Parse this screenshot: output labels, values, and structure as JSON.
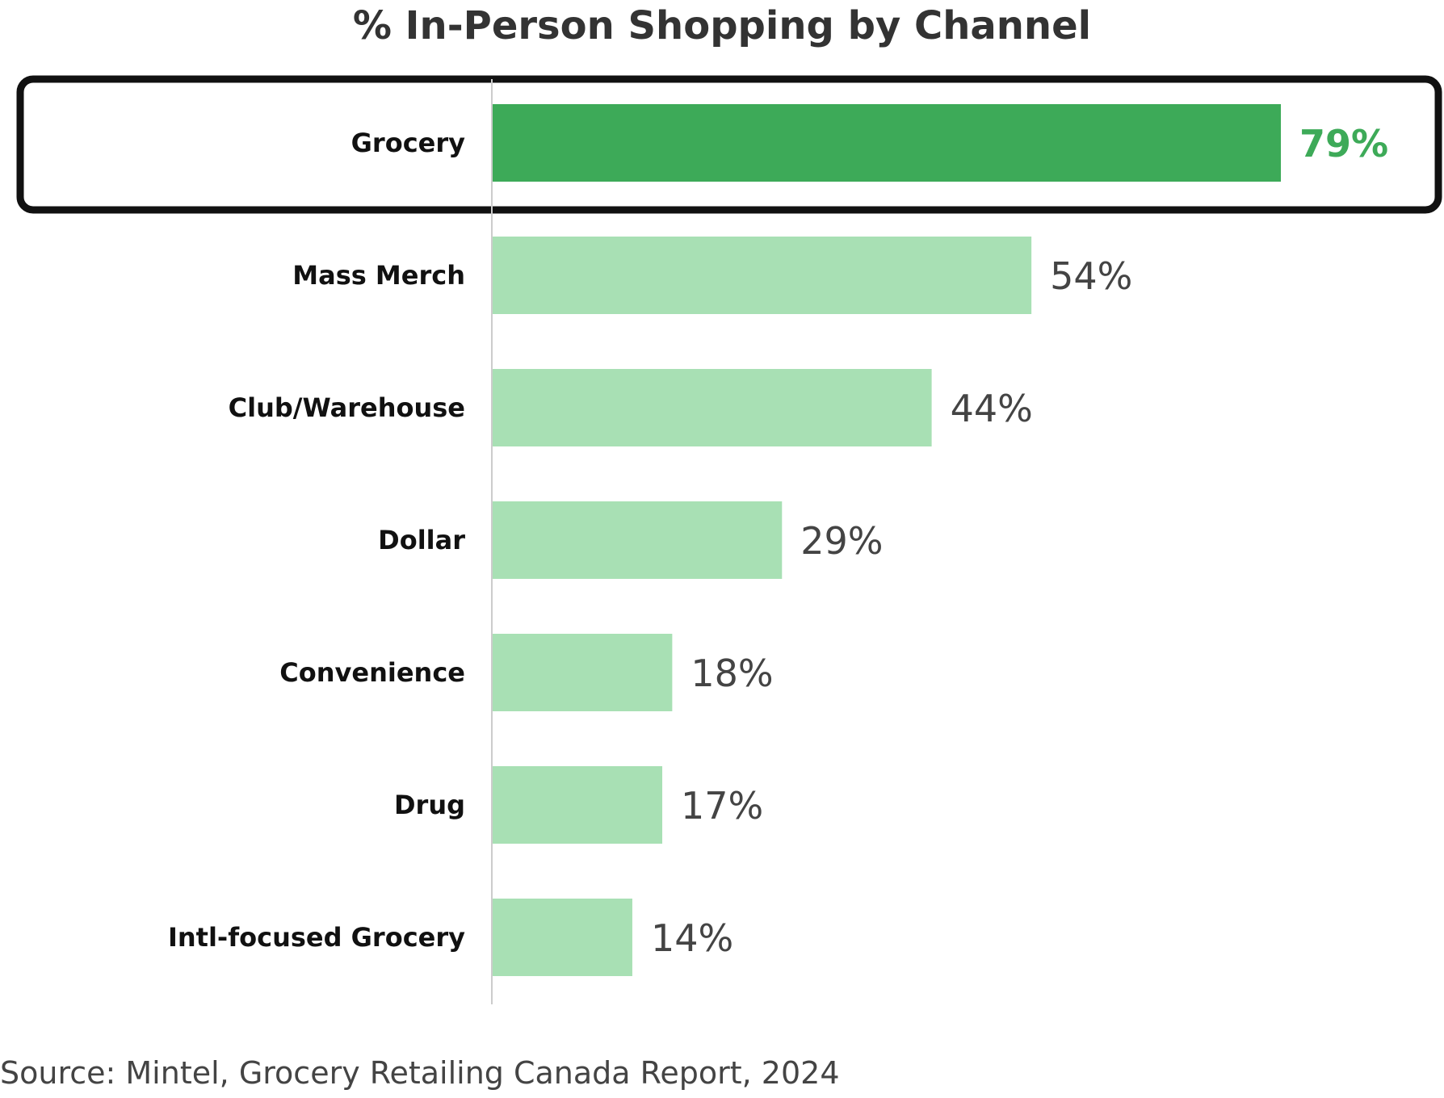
{
  "chart_data": {
    "type": "bar",
    "orientation": "horizontal",
    "title": "% In-Person Shopping by Channel",
    "categories": [
      "Grocery",
      "Mass Merch",
      "Club/Warehouse",
      "Dollar",
      "Convenience",
      "Drug",
      "Intl-focused Grocery"
    ],
    "values": [
      79,
      54,
      44,
      29,
      18,
      17,
      14
    ],
    "value_labels": [
      "79%",
      "54%",
      "44%",
      "29%",
      "18%",
      "17%",
      "14%"
    ],
    "xlim": [
      0,
      100
    ],
    "unit": "%",
    "grid": false,
    "highlighted_category": "Grocery",
    "colors": {
      "highlight": "#3daa58",
      "default": "#a8e0b4",
      "highlight_label": "#3daa58",
      "default_label": "#444444",
      "axis": "#cccccc",
      "highlight_frame": "#111111"
    }
  },
  "source": "Source: Mintel, Grocery Retailing Canada Report, 2024"
}
